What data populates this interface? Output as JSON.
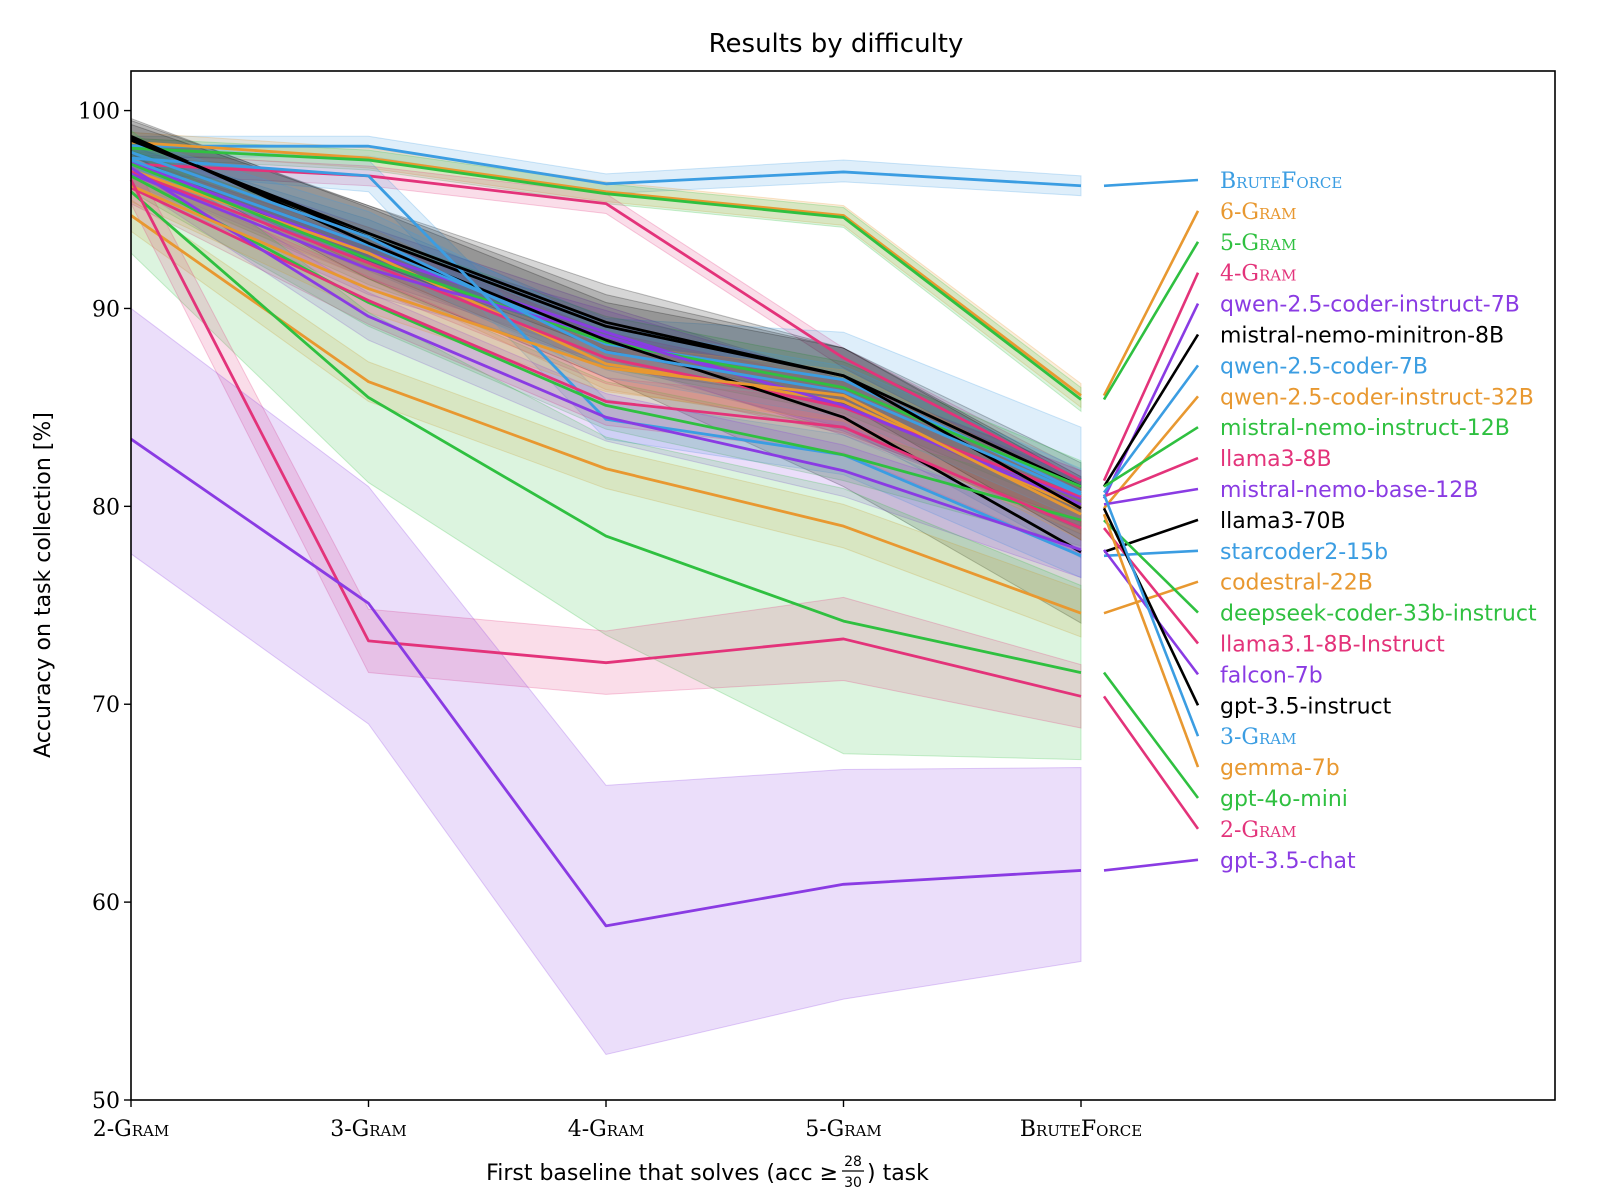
{
  "chart_data": {
    "type": "line",
    "title": "Results by difficulty",
    "xlabel": "First baseline that solves (acc ≥ 28/30) task",
    "xlabel_parts": {
      "prefix": "First baseline that solves (acc ≥ ",
      "frac_num": "28",
      "frac_den": "30",
      "suffix": ") task"
    },
    "ylabel": "Accuracy on task collection [%]",
    "categories": [
      "2-Gram",
      "3-Gram",
      "4-Gram",
      "5-Gram",
      "BruteForce"
    ],
    "ylim": [
      50,
      102
    ],
    "yticks": [
      50,
      60,
      70,
      80,
      90,
      100
    ],
    "grid": false,
    "legend_placement": "right (labels with connector lines)",
    "series": [
      {
        "name": "BruteForce",
        "color": "#3b9de2",
        "small_caps": true,
        "values": [
          98.2,
          98.2,
          96.3,
          96.9,
          96.2
        ],
        "band": [
          [
            97.6,
            98.7
          ],
          [
            97.7,
            98.7
          ],
          [
            95.8,
            96.8
          ],
          [
            96.4,
            97.5
          ],
          [
            95.7,
            96.7
          ]
        ]
      },
      {
        "name": "6-Gram",
        "color": "#e89830",
        "small_caps": true,
        "values": [
          98.4,
          97.6,
          95.9,
          94.7,
          85.6
        ],
        "band": [
          [
            97.9,
            98.9
          ],
          [
            97.1,
            98.1
          ],
          [
            95.4,
            96.4
          ],
          [
            94.2,
            95.2
          ],
          [
            85.0,
            86.2
          ]
        ]
      },
      {
        "name": "5-Gram",
        "color": "#2fc040",
        "small_caps": true,
        "values": [
          98.1,
          97.5,
          95.8,
          94.6,
          85.4
        ],
        "band": [
          [
            97.6,
            98.6
          ],
          [
            97.0,
            98.0
          ],
          [
            95.3,
            96.3
          ],
          [
            94.1,
            95.1
          ],
          [
            84.8,
            86.0
          ]
        ]
      },
      {
        "name": "4-Gram",
        "color": "#e3337a",
        "small_caps": true,
        "values": [
          97.3,
          96.7,
          95.3,
          87.5,
          81.3
        ],
        "band": [
          [
            96.8,
            97.8
          ],
          [
            96.2,
            97.2
          ],
          [
            94.8,
            95.8
          ],
          [
            87.0,
            88.0
          ],
          [
            80.8,
            81.8
          ]
        ]
      },
      {
        "name": "qwen-2.5-coder-instruct-7B",
        "color": "#8a3be3",
        "values": [
          97.4,
          92.8,
          88.8,
          85.0,
          80.4
        ],
        "band": [
          [
            96.6,
            98.2
          ],
          [
            91.5,
            94.1
          ],
          [
            87.5,
            90.1
          ],
          [
            83.6,
            86.4
          ],
          [
            79.0,
            81.8
          ]
        ]
      },
      {
        "name": "mistral-nemo-minitron-8B",
        "color": "#000000",
        "values": [
          98.6,
          93.6,
          89.1,
          86.6,
          81.0
        ],
        "band": [
          [
            97.7,
            99.5
          ],
          [
            92.0,
            95.2
          ],
          [
            87.0,
            91.2
          ],
          [
            85.2,
            88.0
          ],
          [
            79.8,
            82.2
          ]
        ]
      },
      {
        "name": "qwen-2.5-coder-7B",
        "color": "#3b9de2",
        "values": [
          97.5,
          93.2,
          88.2,
          86.4,
          80.7
        ],
        "band": [
          [
            96.8,
            98.2
          ],
          [
            91.9,
            94.5
          ],
          [
            86.9,
            89.5
          ],
          [
            84.0,
            88.8
          ],
          [
            77.4,
            84.0
          ]
        ]
      },
      {
        "name": "qwen-2.5-coder-instruct-32B",
        "color": "#e89830",
        "values": [
          97.0,
          92.8,
          87.2,
          85.3,
          79.9
        ],
        "band": [
          [
            96.3,
            97.7
          ],
          [
            91.5,
            94.1
          ],
          [
            85.9,
            88.5
          ],
          [
            84.0,
            86.6
          ],
          [
            78.6,
            81.2
          ]
        ]
      },
      {
        "name": "mistral-nemo-instruct-12B",
        "color": "#2fc040",
        "values": [
          97.3,
          92.5,
          88.3,
          86.0,
          81.0
        ],
        "band": [
          [
            96.6,
            98.0
          ],
          [
            91.2,
            93.8
          ],
          [
            87.0,
            89.6
          ],
          [
            84.7,
            87.3
          ],
          [
            79.7,
            82.3
          ]
        ]
      },
      {
        "name": "llama3-8B",
        "color": "#e3337a",
        "values": [
          96.9,
          92.3,
          87.5,
          85.0,
          80.5
        ],
        "band": [
          [
            96.2,
            97.6
          ],
          [
            91.0,
            93.6
          ],
          [
            86.2,
            88.8
          ],
          [
            83.7,
            86.3
          ],
          [
            79.2,
            81.8
          ]
        ]
      },
      {
        "name": "mistral-nemo-base-12B",
        "color": "#8a3be3",
        "values": [
          96.8,
          92.0,
          88.6,
          85.1,
          80.1
        ],
        "band": [
          [
            96.1,
            97.5
          ],
          [
            90.7,
            93.3
          ],
          [
            87.3,
            89.9
          ],
          [
            83.8,
            86.4
          ],
          [
            78.8,
            81.4
          ]
        ]
      },
      {
        "name": "llama3-70B",
        "color": "#000000",
        "values": [
          98.7,
          93.3,
          88.4,
          84.5,
          77.7
        ],
        "band": [
          [
            97.8,
            99.6
          ],
          [
            91.5,
            95.1
          ],
          [
            86.5,
            90.3
          ],
          [
            81.0,
            88.0
          ],
          [
            74.1,
            81.3
          ]
        ]
      },
      {
        "name": "starcoder2-15b",
        "color": "#3b9de2",
        "values": [
          97.6,
          96.7,
          84.4,
          82.6,
          77.5
        ],
        "band": [
          [
            96.9,
            98.3
          ],
          [
            95.9,
            97.5
          ],
          [
            83.4,
            85.4
          ],
          [
            81.6,
            83.6
          ],
          [
            76.4,
            78.6
          ]
        ]
      },
      {
        "name": "codestral-22B",
        "color": "#e89830",
        "values": [
          94.7,
          86.3,
          81.9,
          79.0,
          74.6
        ],
        "band": [
          [
            93.9,
            95.5
          ],
          [
            85.3,
            87.3
          ],
          [
            80.9,
            82.9
          ],
          [
            77.9,
            80.1
          ],
          [
            73.4,
            75.8
          ]
        ]
      },
      {
        "name": "deepseek-coder-33b-instruct",
        "color": "#2fc040",
        "values": [
          96.7,
          90.3,
          85.1,
          82.6,
          79.3
        ],
        "band": [
          [
            95.9,
            97.5
          ],
          [
            89.1,
            91.5
          ],
          [
            83.9,
            86.3
          ],
          [
            81.3,
            83.9
          ],
          [
            78.0,
            80.6
          ]
        ]
      },
      {
        "name": "llama3.1-8B-Instruct",
        "color": "#e3337a",
        "values": [
          96.1,
          90.4,
          85.3,
          84.0,
          78.9
        ],
        "band": [
          [
            95.3,
            96.9
          ],
          [
            89.2,
            91.6
          ],
          [
            84.1,
            86.5
          ],
          [
            82.7,
            85.3
          ],
          [
            77.6,
            80.2
          ]
        ]
      },
      {
        "name": "falcon-7b",
        "color": "#8a3be3",
        "values": [
          97.1,
          89.6,
          84.5,
          81.8,
          77.8
        ],
        "band": [
          [
            96.3,
            97.9
          ],
          [
            88.4,
            90.8
          ],
          [
            83.3,
            85.7
          ],
          [
            80.5,
            83.1
          ],
          [
            76.4,
            79.2
          ]
        ]
      },
      {
        "name": "gpt-3.5-instruct",
        "color": "#000000",
        "values": [
          98.5,
          93.8,
          89.3,
          86.6,
          79.9
        ],
        "band": [
          [
            97.7,
            99.3
          ],
          [
            92.4,
            95.2
          ],
          [
            87.9,
            90.7
          ],
          [
            85.2,
            88.0
          ],
          [
            78.3,
            81.5
          ]
        ]
      },
      {
        "name": "3-Gram",
        "color": "#3b9de2",
        "small_caps": true,
        "values": [
          97.9,
          93.6,
          87.8,
          85.8,
          80.6
        ],
        "band": [
          [
            97.2,
            98.6
          ],
          [
            92.3,
            94.9
          ],
          [
            86.5,
            89.1
          ],
          [
            84.5,
            87.1
          ],
          [
            79.3,
            81.9
          ]
        ]
      },
      {
        "name": "gemma-7b",
        "color": "#e89830",
        "values": [
          96.2,
          91.0,
          87.0,
          85.6,
          79.6
        ],
        "band": [
          [
            95.4,
            97.0
          ],
          [
            89.8,
            92.2
          ],
          [
            85.8,
            88.2
          ],
          [
            84.3,
            86.9
          ],
          [
            78.3,
            80.9
          ]
        ]
      },
      {
        "name": "gpt-4o-mini",
        "color": "#2fc040",
        "values": [
          95.9,
          85.5,
          78.5,
          74.2,
          71.6
        ],
        "band": [
          [
            92.8,
            99.0
          ],
          [
            81.2,
            89.8
          ],
          [
            73.5,
            83.5
          ],
          [
            67.5,
            80.9
          ],
          [
            67.2,
            76.0
          ]
        ]
      },
      {
        "name": "2-Gram",
        "color": "#e3337a",
        "small_caps": true,
        "values": [
          96.5,
          73.2,
          72.1,
          73.3,
          70.4
        ],
        "band": [
          [
            95.3,
            97.7
          ],
          [
            71.6,
            74.8
          ],
          [
            70.5,
            73.7
          ],
          [
            71.2,
            75.4
          ],
          [
            68.8,
            72.0
          ]
        ]
      },
      {
        "name": "gpt-3.5-chat",
        "color": "#8a3be3",
        "values": [
          83.4,
          75.1,
          58.8,
          60.9,
          61.6
        ],
        "band": [
          [
            77.6,
            90.0
          ],
          [
            69.0,
            81.0
          ],
          [
            52.3,
            65.9
          ],
          [
            55.1,
            66.7
          ],
          [
            57.0,
            66.8
          ]
        ]
      }
    ]
  }
}
